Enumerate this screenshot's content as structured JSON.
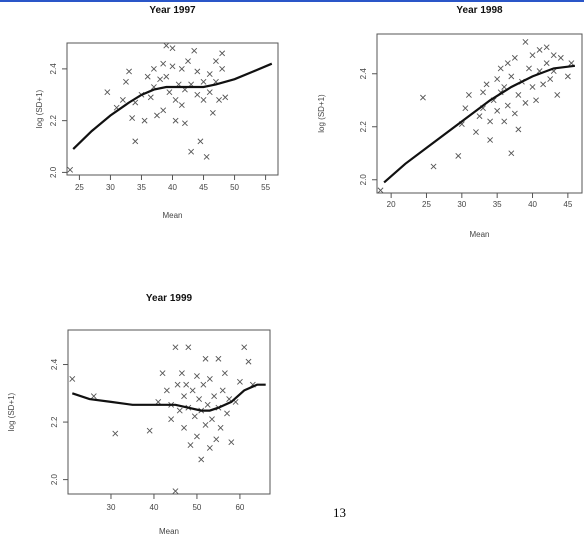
{
  "page_number": "13",
  "chart_data": [
    {
      "type": "scatter",
      "title": "Year 1997",
      "xlabel": "Mean",
      "ylabel": "log (SD+1)",
      "xlim": [
        23,
        57
      ],
      "ylim": [
        1.99,
        2.5
      ],
      "xticks": [
        25,
        30,
        35,
        40,
        45,
        50,
        55
      ],
      "yticks": [
        2.0,
        2.2,
        2.4
      ],
      "marker": "x",
      "points": [
        [
          23.5,
          2.01
        ],
        [
          29.5,
          2.31
        ],
        [
          31,
          2.25
        ],
        [
          32,
          2.28
        ],
        [
          32.5,
          2.35
        ],
        [
          33,
          2.39
        ],
        [
          33.5,
          2.21
        ],
        [
          34,
          2.27
        ],
        [
          34,
          2.12
        ],
        [
          35,
          2.3
        ],
        [
          35.5,
          2.2
        ],
        [
          36,
          2.37
        ],
        [
          36.5,
          2.29
        ],
        [
          37,
          2.4
        ],
        [
          37,
          2.33
        ],
        [
          37.5,
          2.22
        ],
        [
          38,
          2.36
        ],
        [
          38.5,
          2.42
        ],
        [
          38.5,
          2.24
        ],
        [
          39,
          2.49
        ],
        [
          39,
          2.37
        ],
        [
          39.5,
          2.31
        ],
        [
          40,
          2.48
        ],
        [
          40,
          2.41
        ],
        [
          40.5,
          2.2
        ],
        [
          40.5,
          2.28
        ],
        [
          41,
          2.34
        ],
        [
          41.5,
          2.26
        ],
        [
          41.5,
          2.4
        ],
        [
          42,
          2.32
        ],
        [
          42,
          2.19
        ],
        [
          42.5,
          2.43
        ],
        [
          43,
          2.34
        ],
        [
          43,
          2.08
        ],
        [
          43.5,
          2.47
        ],
        [
          44,
          2.3
        ],
        [
          44,
          2.39
        ],
        [
          44.5,
          2.12
        ],
        [
          45,
          2.28
        ],
        [
          45,
          2.35
        ],
        [
          45.5,
          2.06
        ],
        [
          46,
          2.38
        ],
        [
          46,
          2.31
        ],
        [
          46.5,
          2.23
        ],
        [
          47,
          2.43
        ],
        [
          47,
          2.35
        ],
        [
          47.5,
          2.28
        ],
        [
          48,
          2.46
        ],
        [
          48,
          2.4
        ],
        [
          48.5,
          2.29
        ]
      ],
      "curve": [
        [
          24,
          2.09
        ],
        [
          27,
          2.16
        ],
        [
          30,
          2.22
        ],
        [
          33,
          2.27
        ],
        [
          35,
          2.3
        ],
        [
          37,
          2.32
        ],
        [
          39,
          2.33
        ],
        [
          41,
          2.33
        ],
        [
          43,
          2.33
        ],
        [
          45,
          2.33
        ],
        [
          47,
          2.34
        ],
        [
          50,
          2.36
        ],
        [
          53,
          2.39
        ],
        [
          56,
          2.42
        ]
      ]
    },
    {
      "type": "scatter",
      "title": "Year 1998",
      "xlabel": "Mean",
      "ylabel": "log (SD+1)",
      "xlim": [
        18,
        47
      ],
      "ylim": [
        1.95,
        2.55
      ],
      "xticks": [
        20,
        25,
        30,
        35,
        40,
        45
      ],
      "yticks": [
        2.0,
        2.2,
        2.4
      ],
      "marker": "x",
      "points": [
        [
          18.5,
          1.96
        ],
        [
          24.5,
          2.31
        ],
        [
          26,
          2.05
        ],
        [
          29.5,
          2.09
        ],
        [
          30,
          2.21
        ],
        [
          30.5,
          2.27
        ],
        [
          31,
          2.32
        ],
        [
          32,
          2.18
        ],
        [
          32.5,
          2.24
        ],
        [
          33,
          2.33
        ],
        [
          33,
          2.27
        ],
        [
          33.5,
          2.36
        ],
        [
          34,
          2.15
        ],
        [
          34,
          2.22
        ],
        [
          34.5,
          2.3
        ],
        [
          35,
          2.38
        ],
        [
          35,
          2.26
        ],
        [
          35.5,
          2.33
        ],
        [
          35.5,
          2.42
        ],
        [
          36,
          2.22
        ],
        [
          36,
          2.35
        ],
        [
          36.5,
          2.44
        ],
        [
          36.5,
          2.28
        ],
        [
          37,
          2.1
        ],
        [
          37,
          2.39
        ],
        [
          37.5,
          2.25
        ],
        [
          37.5,
          2.46
        ],
        [
          38,
          2.32
        ],
        [
          38,
          2.19
        ],
        [
          38.5,
          2.37
        ],
        [
          39,
          2.52
        ],
        [
          39,
          2.29
        ],
        [
          39.5,
          2.42
        ],
        [
          40,
          2.35
        ],
        [
          40,
          2.47
        ],
        [
          40.5,
          2.3
        ],
        [
          41,
          2.41
        ],
        [
          41,
          2.49
        ],
        [
          41.5,
          2.36
        ],
        [
          42,
          2.44
        ],
        [
          42,
          2.5
        ],
        [
          42.5,
          2.38
        ],
        [
          43,
          2.47
        ],
        [
          43,
          2.41
        ],
        [
          43.5,
          2.32
        ],
        [
          44,
          2.46
        ],
        [
          45,
          2.39
        ],
        [
          45.5,
          2.44
        ]
      ],
      "curve": [
        [
          19,
          1.99
        ],
        [
          22,
          2.06
        ],
        [
          25,
          2.12
        ],
        [
          28,
          2.18
        ],
        [
          31,
          2.24
        ],
        [
          34,
          2.3
        ],
        [
          37,
          2.35
        ],
        [
          40,
          2.39
        ],
        [
          43,
          2.42
        ],
        [
          46,
          2.43
        ]
      ]
    },
    {
      "type": "scatter",
      "title": "Year 1999",
      "xlabel": "Mean",
      "ylabel": "log (SD+1)",
      "xlim": [
        20,
        67
      ],
      "ylim": [
        1.95,
        2.52
      ],
      "xticks": [
        30,
        40,
        50,
        60
      ],
      "yticks": [
        2.0,
        2.2,
        2.4
      ],
      "marker": "x",
      "points": [
        [
          21,
          2.35
        ],
        [
          26,
          2.29
        ],
        [
          31,
          2.16
        ],
        [
          39,
          2.17
        ],
        [
          41,
          2.27
        ],
        [
          42,
          2.37
        ],
        [
          43,
          2.31
        ],
        [
          44,
          2.26
        ],
        [
          44,
          2.21
        ],
        [
          45,
          2.46
        ],
        [
          45,
          1.96
        ],
        [
          45.5,
          2.33
        ],
        [
          46,
          2.24
        ],
        [
          46.5,
          2.37
        ],
        [
          47,
          2.29
        ],
        [
          47,
          2.18
        ],
        [
          47.5,
          2.33
        ],
        [
          48,
          2.46
        ],
        [
          48,
          2.25
        ],
        [
          48.5,
          2.12
        ],
        [
          49,
          2.31
        ],
        [
          49.5,
          2.22
        ],
        [
          50,
          2.36
        ],
        [
          50,
          2.15
        ],
        [
          50.5,
          2.28
        ],
        [
          51,
          2.07
        ],
        [
          51,
          2.24
        ],
        [
          51.5,
          2.33
        ],
        [
          52,
          2.19
        ],
        [
          52,
          2.42
        ],
        [
          52.5,
          2.26
        ],
        [
          53,
          2.11
        ],
        [
          53,
          2.35
        ],
        [
          53.5,
          2.21
        ],
        [
          54,
          2.29
        ],
        [
          54.5,
          2.14
        ],
        [
          55,
          2.25
        ],
        [
          55,
          2.42
        ],
        [
          55.5,
          2.18
        ],
        [
          56,
          2.31
        ],
        [
          56.5,
          2.37
        ],
        [
          57,
          2.23
        ],
        [
          57.5,
          2.28
        ],
        [
          58,
          2.13
        ],
        [
          59,
          2.27
        ],
        [
          60,
          2.34
        ],
        [
          61,
          2.46
        ],
        [
          62,
          2.41
        ],
        [
          63,
          2.33
        ]
      ],
      "curve": [
        [
          21,
          2.3
        ],
        [
          25,
          2.28
        ],
        [
          30,
          2.27
        ],
        [
          35,
          2.26
        ],
        [
          40,
          2.26
        ],
        [
          45,
          2.26
        ],
        [
          48,
          2.25
        ],
        [
          51,
          2.24
        ],
        [
          53,
          2.24
        ],
        [
          55,
          2.25
        ],
        [
          58,
          2.27
        ],
        [
          61,
          2.31
        ],
        [
          64,
          2.33
        ],
        [
          66,
          2.33
        ]
      ]
    }
  ]
}
